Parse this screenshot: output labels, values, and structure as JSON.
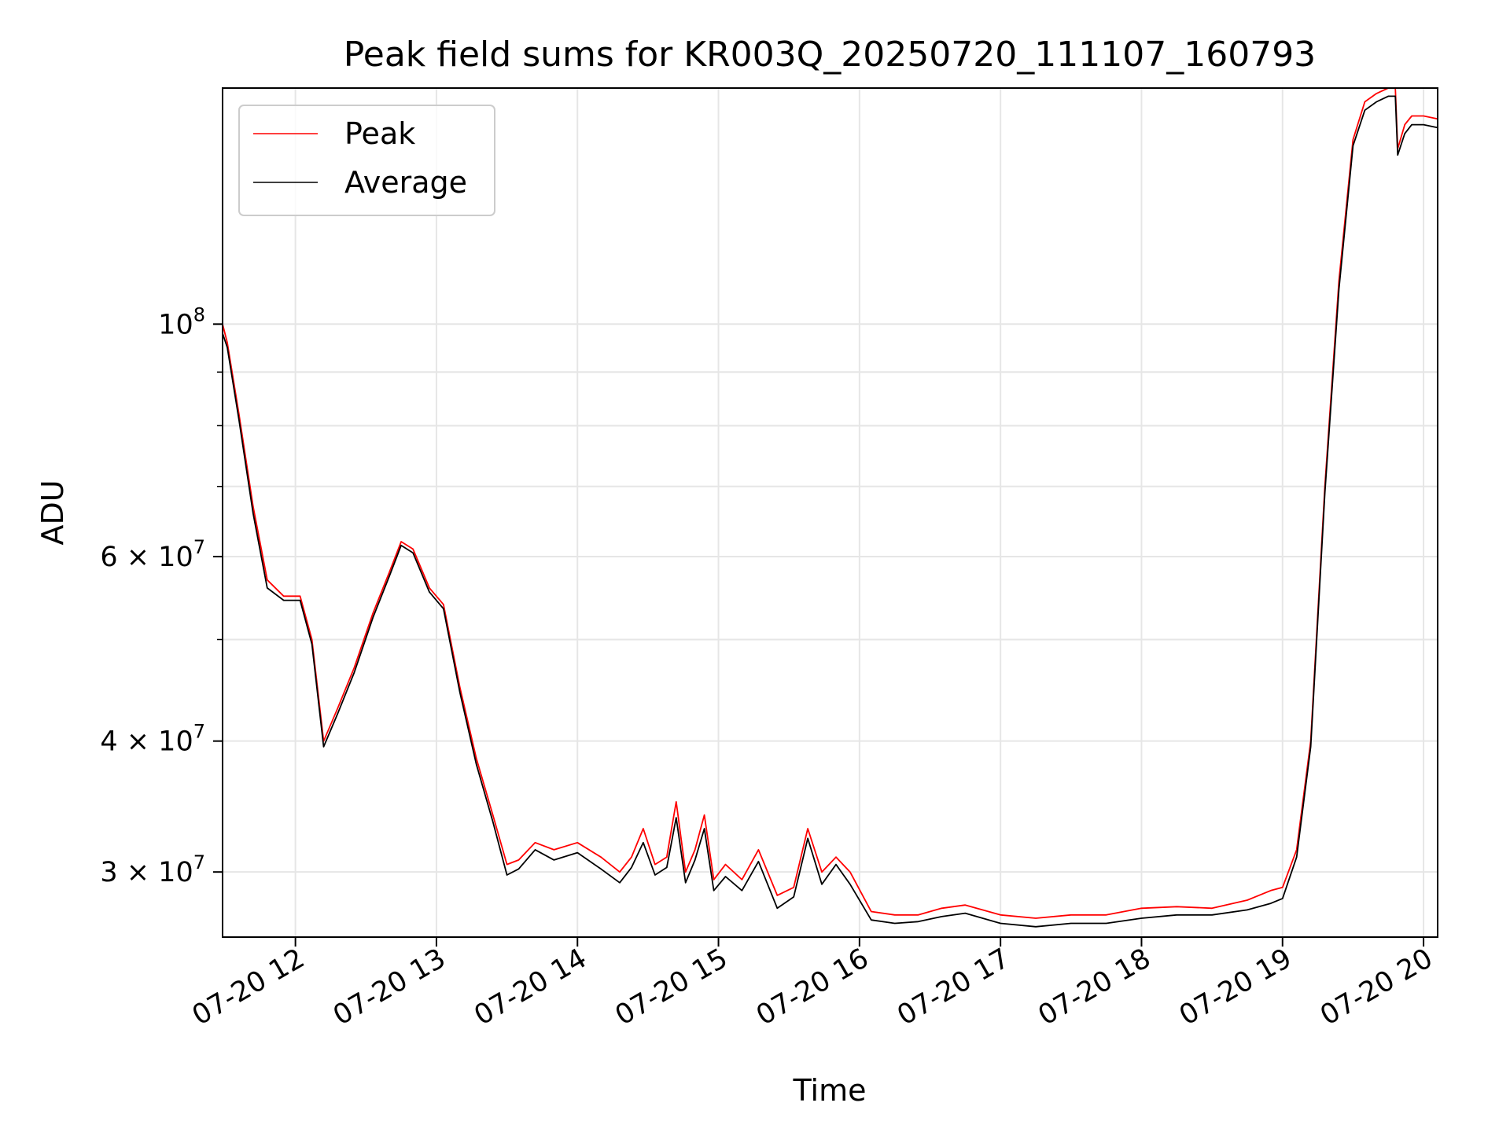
{
  "chart_data": {
    "type": "line",
    "title": "Peak field sums for KR003Q_20250720_111107_160793",
    "xlabel": "Time",
    "ylabel": "ADU",
    "y_scale": "log",
    "grid": true,
    "legend_position": "top-left",
    "xlim": [
      "2025-07-20T11:29",
      "2025-07-20T20:06"
    ],
    "ylim": [
      26000000,
      168000000
    ],
    "x_ticks": [
      {
        "value": "2025-07-20T12:00",
        "label": "07-20 12"
      },
      {
        "value": "2025-07-20T13:00",
        "label": "07-20 13"
      },
      {
        "value": "2025-07-20T14:00",
        "label": "07-20 14"
      },
      {
        "value": "2025-07-20T15:00",
        "label": "07-20 15"
      },
      {
        "value": "2025-07-20T16:00",
        "label": "07-20 16"
      },
      {
        "value": "2025-07-20T17:00",
        "label": "07-20 17"
      },
      {
        "value": "2025-07-20T18:00",
        "label": "07-20 18"
      },
      {
        "value": "2025-07-20T19:00",
        "label": "07-20 19"
      },
      {
        "value": "2025-07-20T20:00",
        "label": "07-20 20"
      }
    ],
    "y_ticks": [
      {
        "value": 100000000,
        "base": "10",
        "exp": "8"
      },
      {
        "value": 60000000,
        "base": "6 × 10",
        "exp": "7"
      },
      {
        "value": 40000000,
        "base": "4 × 10",
        "exp": "7"
      },
      {
        "value": 30000000,
        "base": "3 × 10",
        "exp": "7"
      }
    ],
    "y_minor_ticks": [
      50000000,
      70000000,
      80000000,
      90000000
    ],
    "series": [
      {
        "name": "Peak",
        "color": "#ff0000",
        "x": [
          "2025-07-20T11:29",
          "2025-07-20T11:31",
          "2025-07-20T11:36",
          "2025-07-20T11:42",
          "2025-07-20T11:48",
          "2025-07-20T11:55",
          "2025-07-20T12:02",
          "2025-07-20T12:07",
          "2025-07-20T12:12",
          "2025-07-20T12:18",
          "2025-07-20T12:25",
          "2025-07-20T12:33",
          "2025-07-20T12:40",
          "2025-07-20T12:45",
          "2025-07-20T12:50",
          "2025-07-20T12:57",
          "2025-07-20T13:03",
          "2025-07-20T13:10",
          "2025-07-20T13:17",
          "2025-07-20T13:24",
          "2025-07-20T13:30",
          "2025-07-20T13:35",
          "2025-07-20T13:42",
          "2025-07-20T13:50",
          "2025-07-20T14:00",
          "2025-07-20T14:10",
          "2025-07-20T14:18",
          "2025-07-20T14:23",
          "2025-07-20T14:28",
          "2025-07-20T14:33",
          "2025-07-20T14:38",
          "2025-07-20T14:42",
          "2025-07-20T14:46",
          "2025-07-20T14:50",
          "2025-07-20T14:54",
          "2025-07-20T14:58",
          "2025-07-20T15:03",
          "2025-07-20T15:10",
          "2025-07-20T15:17",
          "2025-07-20T15:25",
          "2025-07-20T15:32",
          "2025-07-20T15:38",
          "2025-07-20T15:44",
          "2025-07-20T15:50",
          "2025-07-20T15:56",
          "2025-07-20T16:05",
          "2025-07-20T16:15",
          "2025-07-20T16:25",
          "2025-07-20T16:35",
          "2025-07-20T16:45",
          "2025-07-20T17:00",
          "2025-07-20T17:15",
          "2025-07-20T17:30",
          "2025-07-20T17:45",
          "2025-07-20T18:00",
          "2025-07-20T18:15",
          "2025-07-20T18:30",
          "2025-07-20T18:45",
          "2025-07-20T18:55",
          "2025-07-20T19:00",
          "2025-07-20T19:06",
          "2025-07-20T19:12",
          "2025-07-20T19:18",
          "2025-07-20T19:24",
          "2025-07-20T19:30",
          "2025-07-20T19:35",
          "2025-07-20T19:40",
          "2025-07-20T19:45",
          "2025-07-20T19:48",
          "2025-07-20T19:49",
          "2025-07-20T19:52",
          "2025-07-20T19:55",
          "2025-07-20T20:00",
          "2025-07-20T20:06"
        ],
        "y": [
          100000000,
          96000000,
          82000000,
          67000000,
          57000000,
          55000000,
          55000000,
          50000000,
          40000000,
          43000000,
          47000000,
          53000000,
          58000000,
          62000000,
          61000000,
          56000000,
          54000000,
          45000000,
          38500000,
          34000000,
          30500000,
          30800000,
          32000000,
          31500000,
          32000000,
          31000000,
          30000000,
          31000000,
          33000000,
          30500000,
          31000000,
          35000000,
          30000000,
          31500000,
          34000000,
          29500000,
          30500000,
          29500000,
          31500000,
          28500000,
          29000000,
          33000000,
          30000000,
          31000000,
          30000000,
          27500000,
          27300000,
          27300000,
          27700000,
          27900000,
          27300000,
          27100000,
          27300000,
          27300000,
          27700000,
          27800000,
          27700000,
          28200000,
          28800000,
          29000000,
          31500000,
          40000000,
          70000000,
          110000000,
          150000000,
          163000000,
          166000000,
          168000000,
          168000000,
          147000000,
          155000000,
          158000000,
          158000000,
          157000000
        ]
      },
      {
        "name": "Average",
        "color": "#000000",
        "x": [
          "2025-07-20T11:29",
          "2025-07-20T11:31",
          "2025-07-20T11:36",
          "2025-07-20T11:42",
          "2025-07-20T11:48",
          "2025-07-20T11:55",
          "2025-07-20T12:02",
          "2025-07-20T12:07",
          "2025-07-20T12:12",
          "2025-07-20T12:18",
          "2025-07-20T12:25",
          "2025-07-20T12:33",
          "2025-07-20T12:40",
          "2025-07-20T12:45",
          "2025-07-20T12:50",
          "2025-07-20T12:57",
          "2025-07-20T13:03",
          "2025-07-20T13:10",
          "2025-07-20T13:17",
          "2025-07-20T13:24",
          "2025-07-20T13:30",
          "2025-07-20T13:35",
          "2025-07-20T13:42",
          "2025-07-20T13:50",
          "2025-07-20T14:00",
          "2025-07-20T14:10",
          "2025-07-20T14:18",
          "2025-07-20T14:23",
          "2025-07-20T14:28",
          "2025-07-20T14:33",
          "2025-07-20T14:38",
          "2025-07-20T14:42",
          "2025-07-20T14:46",
          "2025-07-20T14:50",
          "2025-07-20T14:54",
          "2025-07-20T14:58",
          "2025-07-20T15:03",
          "2025-07-20T15:10",
          "2025-07-20T15:17",
          "2025-07-20T15:25",
          "2025-07-20T15:32",
          "2025-07-20T15:38",
          "2025-07-20T15:44",
          "2025-07-20T15:50",
          "2025-07-20T15:56",
          "2025-07-20T16:05",
          "2025-07-20T16:15",
          "2025-07-20T16:25",
          "2025-07-20T16:35",
          "2025-07-20T16:45",
          "2025-07-20T17:00",
          "2025-07-20T17:15",
          "2025-07-20T17:30",
          "2025-07-20T17:45",
          "2025-07-20T18:00",
          "2025-07-20T18:15",
          "2025-07-20T18:30",
          "2025-07-20T18:45",
          "2025-07-20T18:55",
          "2025-07-20T19:00",
          "2025-07-20T19:06",
          "2025-07-20T19:12",
          "2025-07-20T19:18",
          "2025-07-20T19:24",
          "2025-07-20T19:30",
          "2025-07-20T19:35",
          "2025-07-20T19:40",
          "2025-07-20T19:45",
          "2025-07-20T19:48",
          "2025-07-20T19:49",
          "2025-07-20T19:52",
          "2025-07-20T19:55",
          "2025-07-20T20:00",
          "2025-07-20T20:06"
        ],
        "y": [
          98000000,
          95000000,
          81000000,
          66000000,
          56000000,
          54500000,
          54500000,
          49500000,
          39500000,
          42500000,
          46500000,
          52500000,
          57500000,
          61500000,
          60500000,
          55500000,
          53500000,
          44500000,
          38000000,
          33500000,
          29800000,
          30200000,
          31500000,
          30800000,
          31300000,
          30200000,
          29300000,
          30300000,
          32000000,
          29800000,
          30300000,
          33800000,
          29300000,
          30800000,
          33000000,
          28800000,
          29700000,
          28800000,
          30700000,
          27700000,
          28400000,
          32300000,
          29200000,
          30500000,
          29200000,
          27000000,
          26800000,
          26900000,
          27200000,
          27400000,
          26800000,
          26600000,
          26800000,
          26800000,
          27100000,
          27300000,
          27300000,
          27600000,
          28000000,
          28300000,
          31000000,
          39500000,
          69000000,
          108000000,
          148000000,
          160000000,
          163000000,
          165000000,
          165000000,
          145000000,
          152000000,
          155000000,
          155000000,
          154000000
        ]
      }
    ]
  }
}
